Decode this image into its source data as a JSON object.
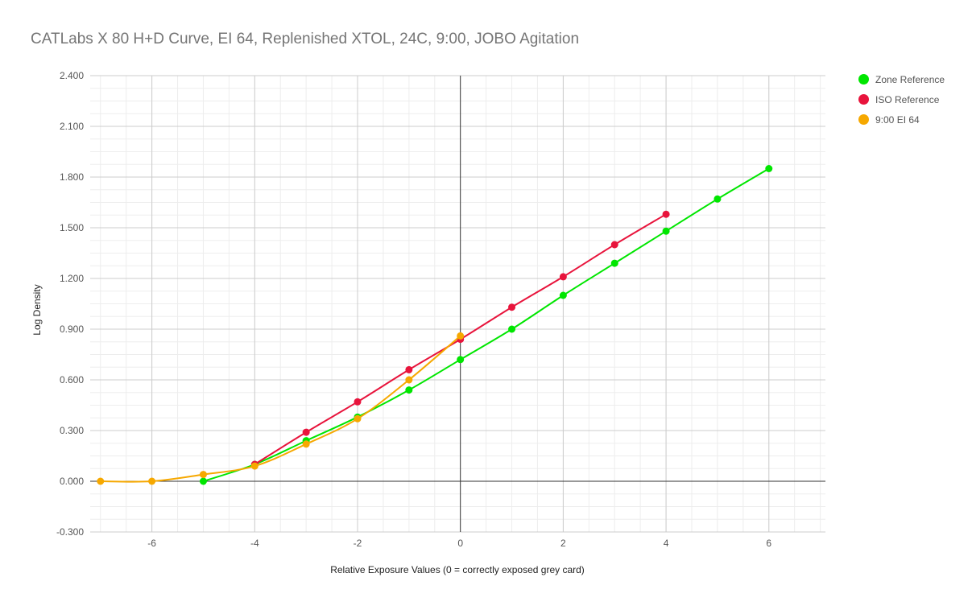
{
  "chart_data": {
    "type": "line",
    "title": "CATLabs X 80 H+D Curve, EI 64, Replenished XTOL, 24C, 9:00, JOBO Agitation",
    "xlabel": "Relative Exposure Values (0 = correctly exposed grey card)",
    "ylabel": "Log Density",
    "xlim": [
      -7.2,
      7.1
    ],
    "ylim": [
      -0.3,
      2.4
    ],
    "x_ticks": [
      -6,
      -4,
      -2,
      0,
      2,
      4,
      6
    ],
    "y_ticks": [
      -0.3,
      0.0,
      0.3,
      0.6,
      0.9,
      1.2,
      1.5,
      1.8,
      2.1,
      2.4
    ],
    "y_tick_labels": [
      "-0.300",
      "0.000",
      "0.300",
      "0.600",
      "0.900",
      "1.200",
      "1.500",
      "1.800",
      "2.100",
      "2.400"
    ],
    "grid": true,
    "legend_position": "right",
    "series": [
      {
        "name": "Zone Reference",
        "color": "#00e600",
        "x": [
          -5,
          -4,
          -3,
          -2,
          -1,
          0,
          1,
          2,
          3,
          4,
          5,
          6
        ],
        "y": [
          0.0,
          0.1,
          0.24,
          0.38,
          0.54,
          0.72,
          0.9,
          1.1,
          1.29,
          1.48,
          1.67,
          1.85
        ]
      },
      {
        "name": "ISO Reference",
        "color": "#e8143c",
        "x": [
          -4,
          -3,
          -2,
          -1,
          0,
          1,
          2,
          3,
          4
        ],
        "y": [
          0.1,
          0.29,
          0.47,
          0.66,
          0.84,
          1.03,
          1.21,
          1.4,
          1.58
        ]
      },
      {
        "name": "9:00 EI 64",
        "color": "#f6a800",
        "x": [
          -7,
          -6,
          -5,
          -4,
          -3,
          -2,
          -1,
          0
        ],
        "y": [
          0.0,
          0.0,
          0.04,
          0.09,
          0.22,
          0.37,
          0.6,
          0.86
        ]
      }
    ]
  }
}
